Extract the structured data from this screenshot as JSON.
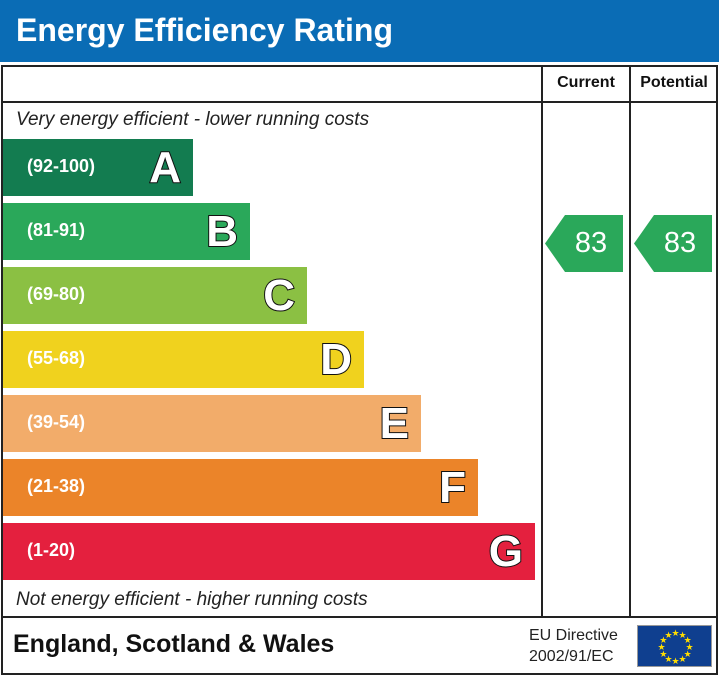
{
  "header": {
    "title": "Energy Efficiency Rating"
  },
  "columns": {
    "current": "Current",
    "potential": "Potential"
  },
  "notes": {
    "top": "Very energy efficient - lower running costs",
    "bottom": "Not energy efficient - higher running costs"
  },
  "chart_data": {
    "type": "bar",
    "bands": [
      {
        "range": "(92-100)",
        "letter": "A",
        "color": "#137c50"
      },
      {
        "range": "(81-91)",
        "letter": "B",
        "color": "#2aa85a"
      },
      {
        "range": "(69-80)",
        "letter": "C",
        "color": "#8bc043"
      },
      {
        "range": "(55-68)",
        "letter": "D",
        "color": "#f0d21e"
      },
      {
        "range": "(39-54)",
        "letter": "E",
        "color": "#f2ac6a"
      },
      {
        "range": "(21-38)",
        "letter": "F",
        "color": "#eb8429"
      },
      {
        "range": "(1-20)",
        "letter": "G",
        "color": "#e4203e"
      }
    ],
    "current": {
      "value": "83",
      "band": "B",
      "color": "#2aa85a"
    },
    "potential": {
      "value": "83",
      "band": "B",
      "color": "#2aa85a"
    }
  },
  "footer": {
    "country": "England, Scotland & Wales",
    "directive_line1": "EU Directive",
    "directive_line2": "2002/91/EC"
  }
}
